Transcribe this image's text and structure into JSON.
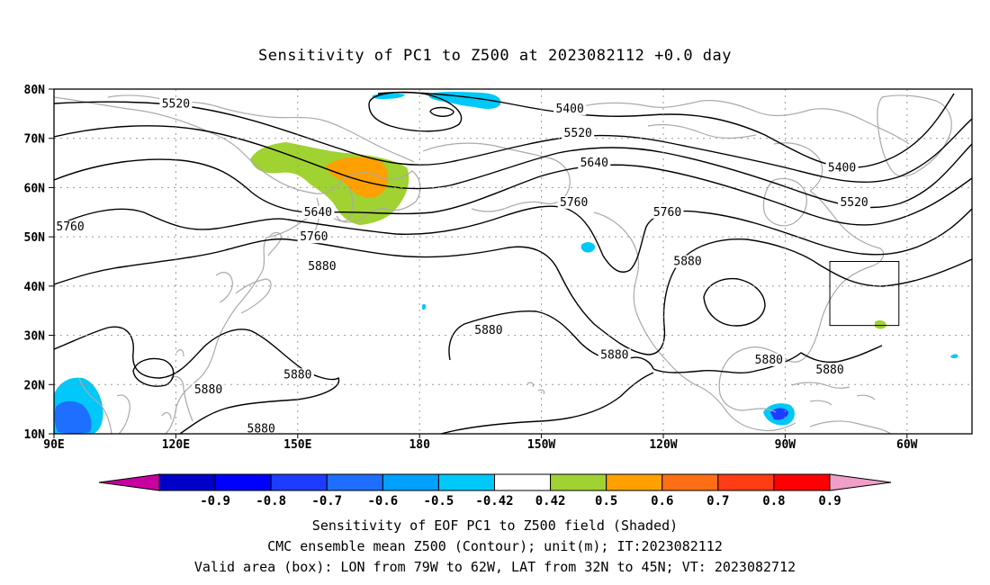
{
  "title": "Sensitivity of PC1 to Z500 at 2023082112 +0.0 day",
  "lat_labels": [
    "80N",
    "70N",
    "60N",
    "50N",
    "40N",
    "30N",
    "20N",
    "10N"
  ],
  "lon_labels": [
    "90E",
    "120E",
    "150E",
    "180",
    "150W",
    "120W",
    "90W",
    "60W"
  ],
  "contour_labels": [
    {
      "text": "5520",
      "lon": 120,
      "lat": 77
    },
    {
      "text": "5400",
      "lon": 217,
      "lat": 76
    },
    {
      "text": "5520",
      "lon": 219,
      "lat": 71
    },
    {
      "text": "5640",
      "lon": 223,
      "lat": 65
    },
    {
      "text": "5400",
      "lon": 284,
      "lat": 64
    },
    {
      "text": "5520",
      "lon": 287,
      "lat": 57
    },
    {
      "text": "5760",
      "lon": 218,
      "lat": 57
    },
    {
      "text": "5760",
      "lon": 241,
      "lat": 55
    },
    {
      "text": "5640",
      "lon": 155,
      "lat": 55
    },
    {
      "text": "5760",
      "lon": 94,
      "lat": 52
    },
    {
      "text": "5760",
      "lon": 154,
      "lat": 50
    },
    {
      "text": "5880",
      "lon": 156,
      "lat": 44
    },
    {
      "text": "5880",
      "lon": 246,
      "lat": 45
    },
    {
      "text": "5880",
      "lon": 197,
      "lat": 31
    },
    {
      "text": "5880",
      "lon": 228,
      "lat": 26
    },
    {
      "text": "5880",
      "lon": 150,
      "lat": 22
    },
    {
      "text": "5880",
      "lon": 128,
      "lat": 19
    },
    {
      "text": "5880",
      "lon": 266,
      "lat": 25
    },
    {
      "text": "5880",
      "lon": 281,
      "lat": 23
    },
    {
      "text": "5880",
      "lon": 141,
      "lat": 11
    }
  ],
  "box": {
    "lon_min": 281,
    "lon_max": 298,
    "lat_min": 32,
    "lat_max": 45
  },
  "colorbar": {
    "labels": [
      "-0.9",
      "-0.8",
      "-0.7",
      "-0.6",
      "-0.5",
      "-0.42",
      "0.42",
      "0.5",
      "0.6",
      "0.7",
      "0.8",
      "0.9"
    ],
    "colors": [
      "#0000c8",
      "#0000ff",
      "#1e3cff",
      "#1e6eff",
      "#00a0ff",
      "#00c8f8",
      "#ffffff",
      "#a0d232",
      "#ffa000",
      "#ff6e14",
      "#ff3c14",
      "#ff0000"
    ],
    "left_end": "#c800a0",
    "right_end": "#f0a0c8"
  },
  "footer": [
    "Sensitivity of EOF PC1 to Z500 field (Shaded)",
    "CMC ensemble mean Z500 (Contour); unit(m); IT:2023082112",
    "Valid area (box): LON from 79W to 62W, LAT from 32N to 45N; VT: 2023082712"
  ]
}
